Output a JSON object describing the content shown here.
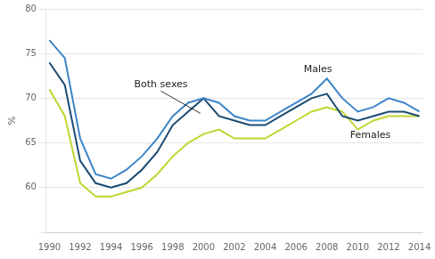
{
  "chart_data": {
    "type": "line",
    "ylabel": "%",
    "x": [
      1990,
      1991,
      1992,
      1993,
      1994,
      1995,
      1996,
      1997,
      1998,
      1999,
      2000,
      2001,
      2002,
      2003,
      2004,
      2005,
      2006,
      2007,
      2008,
      2009,
      2010,
      2011,
      2012,
      2013,
      2014
    ],
    "series": [
      {
        "name": "Females",
        "color": "#bfd630",
        "values": [
          71.0,
          68.0,
          60.5,
          59.0,
          59.0,
          59.5,
          60.0,
          61.5,
          63.5,
          65.0,
          66.0,
          66.5,
          65.5,
          65.5,
          65.5,
          66.5,
          67.5,
          68.5,
          69.0,
          68.5,
          66.5,
          67.5,
          68.0,
          68.0,
          68.0
        ]
      },
      {
        "name": "Both sexes",
        "color": "#1a4a72",
        "values": [
          74.0,
          71.5,
          63.0,
          60.5,
          60.0,
          60.5,
          62.0,
          64.0,
          67.0,
          68.5,
          70.0,
          68.0,
          67.5,
          67.0,
          67.0,
          68.0,
          69.0,
          70.0,
          70.5,
          68.0,
          67.5,
          68.0,
          68.5,
          68.5,
          68.0
        ]
      },
      {
        "name": "Males",
        "color": "#3d85c8",
        "values": [
          76.5,
          74.5,
          65.5,
          61.5,
          61.0,
          62.0,
          63.5,
          65.5,
          68.0,
          69.5,
          70.0,
          69.5,
          68.0,
          67.5,
          67.5,
          68.5,
          69.5,
          70.5,
          72.2,
          70.0,
          68.5,
          69.0,
          70.0,
          69.5,
          68.5
        ]
      }
    ],
    "xlim": [
      1989.8,
      2014.2
    ],
    "xticks": [
      1990,
      1992,
      1994,
      1996,
      1998,
      2000,
      2002,
      2004,
      2006,
      2008,
      2010,
      2012,
      2014
    ],
    "ylim": [
      55,
      80
    ],
    "yticks": [
      {
        "value": 55,
        "label": null
      },
      60,
      65,
      70,
      75,
      80
    ],
    "grid": "y",
    "annotations": [
      {
        "text": "Both sexes",
        "x": 1995.5,
        "y": 71.5,
        "arrow": [
          1999.8,
          68.3
        ]
      },
      {
        "text": "Males",
        "x": 2006.5,
        "y": 73.2
      },
      {
        "text": "Females",
        "x": 2009.5,
        "y": 65.8
      }
    ]
  }
}
